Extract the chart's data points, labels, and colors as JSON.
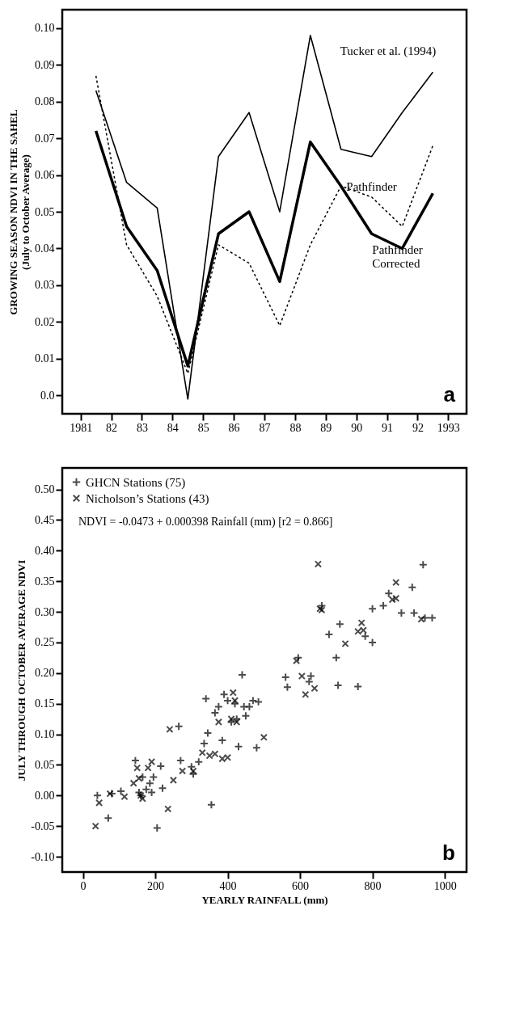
{
  "chart_data": [
    {
      "type": "line",
      "ylabel": "GROWING SEASON NDVI IN THE SAHEL\n(July to October Average)",
      "x": [
        1981.5,
        1982.5,
        1983.5,
        1984.5,
        1985.5,
        1986.5,
        1987.5,
        1988.5,
        1989.5,
        1990.5,
        1991.5,
        1992.5
      ],
      "series": [
        {
          "name": "Tucker et al. (1994)",
          "color": "#000000",
          "line_style": "solid",
          "values": [
            0.083,
            0.058,
            0.051,
            -0.001,
            0.065,
            0.077,
            0.05,
            0.098,
            0.067,
            0.065,
            0.077,
            0.088
          ]
        },
        {
          "name": "Pathfinder",
          "color": "#000000",
          "line_style": "dotted",
          "values": [
            0.087,
            0.041,
            0.027,
            0.006,
            0.041,
            0.036,
            0.019,
            0.041,
            0.057,
            0.054,
            0.046,
            0.068
          ]
        },
        {
          "name": "Pathfinder Corrected",
          "color": "#000000",
          "line_style": "solid",
          "values": [
            0.072,
            0.046,
            0.034,
            0.008,
            0.044,
            0.05,
            0.031,
            0.069,
            0.057,
            0.044,
            0.04,
            0.055
          ]
        }
      ],
      "xlim": [
        1980.4,
        1993.6
      ],
      "xticks": [
        1981,
        {
          "value": 1982,
          "label": "82"
        },
        {
          "value": 1983,
          "label": "83"
        },
        {
          "value": 1984,
          "label": "84"
        },
        {
          "value": 1985,
          "label": "85"
        },
        {
          "value": 1986,
          "label": "86"
        },
        {
          "value": 1987,
          "label": "87"
        },
        {
          "value": 1988,
          "label": "88"
        },
        {
          "value": 1989,
          "label": "89"
        },
        {
          "value": 1990,
          "label": "90"
        },
        {
          "value": 1991,
          "label": "91"
        },
        {
          "value": 1992,
          "label": "92"
        },
        1993
      ],
      "ylim": [
        -0.005,
        0.105
      ],
      "yticks": [
        {
          "value": 0,
          "label": "0.0"
        },
        0.01,
        0.02,
        0.03,
        0.04,
        0.05,
        0.06,
        0.07,
        0.08,
        0.09,
        {
          "value": 0.1,
          "label": "0.10"
        }
      ],
      "grid": false,
      "legend": false,
      "marker": "none",
      "annotations": [
        "a"
      ]
    },
    {
      "type": "scatter",
      "xlabel": "YEARLY RAINFALL (mm)",
      "ylabel": "JULY THROUGH OCTOBER AVERAGE NDVI",
      "series": [
        {
          "name": "GHCN Stations (75)",
          "color": "#000000",
          "marker": "cross",
          "x": [
            40,
            70,
            80,
            105,
            145,
            155,
            160,
            165,
            175,
            185,
            190,
            195,
            205,
            215,
            220,
            265,
            270,
            300,
            305,
            320,
            335,
            340,
            345,
            355,
            365,
            375,
            385,
            390,
            400,
            410,
            420,
            425,
            430,
            440,
            445,
            450,
            460,
            470,
            480,
            485,
            560,
            565,
            595,
            625,
            630,
            660,
            680,
            700,
            705,
            710,
            760,
            780,
            800,
            800,
            830,
            845,
            880,
            910,
            915,
            940,
            945,
            965
          ],
          "values": [
            0.0,
            -0.037,
            0.003,
            0.007,
            0.057,
            0.005,
            0.0,
            0.03,
            0.01,
            0.02,
            0.005,
            0.03,
            -0.053,
            0.048,
            0.012,
            0.113,
            0.057,
            0.047,
            0.035,
            0.055,
            0.085,
            0.158,
            0.102,
            -0.015,
            0.135,
            0.145,
            0.09,
            0.165,
            0.155,
            0.12,
            0.15,
            0.125,
            0.08,
            0.197,
            0.145,
            0.13,
            0.145,
            0.155,
            0.078,
            0.153,
            0.193,
            0.177,
            0.225,
            0.186,
            0.195,
            0.31,
            0.263,
            0.225,
            0.18,
            0.28,
            0.178,
            0.26,
            0.25,
            0.305,
            0.31,
            0.33,
            0.298,
            0.34,
            0.298,
            0.377,
            0.29,
            0.29
          ]
        },
        {
          "name": "Nicholson’s Stations (43)",
          "color": "#000000",
          "marker": "x",
          "x": [
            35,
            45,
            75,
            115,
            140,
            150,
            155,
            160,
            165,
            180,
            190,
            235,
            240,
            250,
            275,
            305,
            330,
            350,
            365,
            375,
            385,
            400,
            410,
            415,
            420,
            425,
            500,
            590,
            605,
            615,
            640,
            650,
            655,
            660,
            725,
            760,
            770,
            775,
            855,
            865,
            865,
            935
          ],
          "values": [
            -0.05,
            -0.012,
            0.003,
            -0.002,
            0.02,
            0.045,
            0.028,
            0.0,
            -0.005,
            0.045,
            0.055,
            -0.022,
            0.108,
            0.025,
            0.04,
            0.04,
            0.07,
            0.065,
            0.068,
            0.12,
            0.06,
            0.062,
            0.125,
            0.168,
            0.155,
            0.12,
            0.095,
            0.22,
            0.195,
            0.165,
            0.175,
            0.378,
            0.305,
            0.303,
            0.248,
            0.268,
            0.282,
            0.27,
            0.32,
            0.348,
            0.322,
            0.288
          ]
        }
      ],
      "xlim": [
        -57,
        1060
      ],
      "xticks": [
        0,
        200,
        400,
        600,
        800,
        1000
      ],
      "ylim": [
        -0.125,
        0.535
      ],
      "yticks": [
        {
          "value": -0.1,
          "label": "-0.10"
        },
        -0.05,
        {
          "value": 0,
          "label": "0.00"
        },
        0.05,
        {
          "value": 0.1,
          "label": "0.10"
        },
        0.15,
        {
          "value": 0.2,
          "label": "0.20"
        },
        0.25,
        {
          "value": 0.3,
          "label": "0.30"
        },
        0.35,
        {
          "value": 0.4,
          "label": "0.40"
        },
        0.45,
        {
          "value": 0.5,
          "label": "0.50"
        }
      ],
      "grid": false,
      "legend": "top left",
      "annotations": [
        "NDVI = -0.0473 + 0.000398 Rainfall (mm) [r2 = 0.866]",
        "b"
      ]
    }
  ]
}
